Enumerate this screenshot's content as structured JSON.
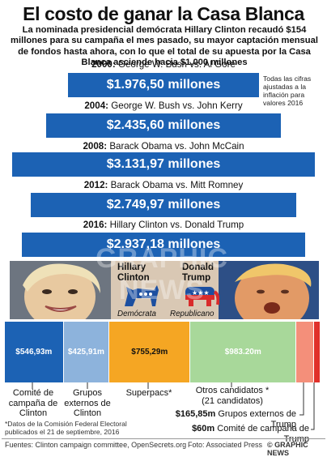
{
  "title": "El costo de ganar la Casa Blanca",
  "subtitle": "La nominada presidencial demócrata Hillary Clinton recaudó $154 millones para su campaña el mes pasado, su mayor captación mensual de fondos hasta ahora, con lo que el total de su apuesta por la Casa Blanca asciende hacia $1.000 millones",
  "note": "Todas las cifras ajustadas a la inflación para valores 2016",
  "colors": {
    "bar": "#1c62b4",
    "clinton_campaign": "#1c62b4",
    "clinton_groups": "#8db3dc",
    "superpacs": "#f5a623",
    "others": "#a8d89a",
    "trump_groups": "#f48f7a",
    "trump_campaign": "#e0302a"
  },
  "chart_data": [
    {
      "type": "bar",
      "categories": [
        "2000: George W. Bush vs. Al Gore",
        "2004: George W. Bush vs. John Kerry",
        "2008: Barack Obama vs. John McCain",
        "2012: Barack Obama vs. Mitt Romney",
        "2016: Hillary Clinton vs. Donald Trump"
      ],
      "years": [
        "2000:",
        "2004:",
        "2008:",
        "2012:",
        "2016:"
      ],
      "matchups": [
        "George W. Bush vs. Al Gore",
        "George W. Bush vs. John Kerry",
        "Barack Obama vs. John McCain",
        "Barack Obama vs. Mitt Romney",
        "Hillary Clinton vs. Donald Trump"
      ],
      "values": [
        1976.5,
        2435.6,
        3131.97,
        2749.97,
        2937.18
      ],
      "value_labels": [
        "$1.976,50 millones",
        "$2.435,60 millones",
        "$3.131,97 millones",
        "$2.749,97 millones",
        "$2.937,18 millones"
      ],
      "unit": "millones"
    },
    {
      "type": "bar",
      "stacked": true,
      "segments": [
        {
          "value": 546.93,
          "label": "$546,93m",
          "caption": "Comité de campaña de Clinton"
        },
        {
          "value": 425.91,
          "label": "$425,91m",
          "caption": "Grupos externos de Clinton"
        },
        {
          "value": 755.29,
          "label": "$755,29m",
          "caption": "Superpacs*"
        },
        {
          "value": 983.2,
          "label": "$983.20m",
          "caption": "Otros candidatos * (21 candidatos)"
        },
        {
          "value": 165.85,
          "label": "$165,85m",
          "caption": "Grupos externos de Trump"
        },
        {
          "value": 60,
          "label": "$60m",
          "caption": "Comité de campaña de Trump"
        }
      ]
    }
  ],
  "candidates": {
    "clinton_first": "Hillary",
    "clinton_last": "Clinton",
    "trump_first": "Donald",
    "trump_last": "Trump",
    "dem_label": "Demócrata",
    "rep_label": "Republicano"
  },
  "captions": {
    "clinton_campaign": "Comité de campaña de Clinton",
    "clinton_groups": "Grupos externos de Clinton",
    "superpacs": "Superpacs*",
    "others_1": "Otros candidatos *",
    "others_2": "(21 candidatos)",
    "trump_groups_value": "$165,85m",
    "trump_groups_text": "Grupos externos de Trump",
    "trump_campaign_value": "$60m",
    "trump_campaign_text": "Comité de campaña de Trump"
  },
  "footnote_1": "*Datos de la Comisión Federal Electoral",
  "footnote_2": "publicados el 21 de septiembre, 2016",
  "sources": "Fuentes: Clinton campaign committee, OpenSecrets.org",
  "photo_credit": "Foto: Associated Press",
  "copyright": "© GRAPHIC NEWS",
  "watermark": "GRAPHIC NEWS"
}
